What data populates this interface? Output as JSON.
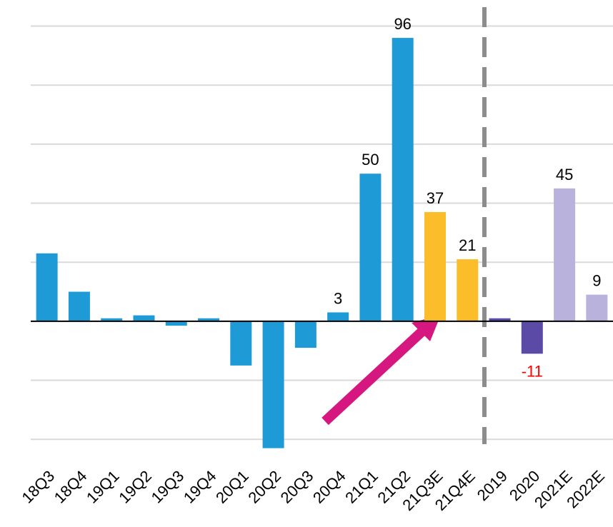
{
  "chart_data": {
    "type": "bar",
    "categories": [
      "18Q3",
      "18Q4",
      "19Q1",
      "19Q2",
      "19Q3",
      "19Q4",
      "20Q1",
      "20Q2",
      "20Q3",
      "20Q4",
      "21Q1",
      "21Q2",
      "21Q3E",
      "21Q4E",
      "2019",
      "2020",
      "2021E",
      "2022E"
    ],
    "values": [
      23,
      10,
      1,
      2,
      -1.5,
      1,
      -15,
      -43,
      -9,
      3,
      50,
      96,
      37,
      21,
      1,
      -11,
      45,
      9
    ],
    "value_labels": [
      null,
      null,
      null,
      null,
      null,
      null,
      null,
      null,
      null,
      "3",
      "50",
      "96",
      "37",
      "21",
      null,
      "-11",
      "45",
      "9"
    ],
    "colors": [
      "#1e9bd7",
      "#1e9bd7",
      "#1e9bd7",
      "#1e9bd7",
      "#1e9bd7",
      "#1e9bd7",
      "#1e9bd7",
      "#1e9bd7",
      "#1e9bd7",
      "#1e9bd7",
      "#1e9bd7",
      "#1e9bd7",
      "#fbbd29",
      "#fbbd29",
      "#5b4aa6",
      "#5b4aa6",
      "#b8b2dd",
      "#b8b2dd"
    ],
    "negative_label_color": "#ff0000",
    "ylim": [
      -46,
      104
    ],
    "yticks": [
      -40,
      -20,
      20,
      40,
      60,
      80,
      100
    ],
    "grid": true
  }
}
